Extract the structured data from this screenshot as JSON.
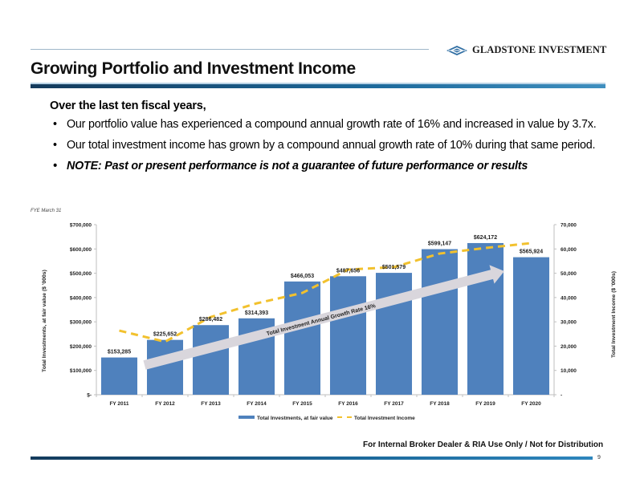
{
  "header": {
    "brand": "GLADSTONE INVESTMENT",
    "brand_icon": "diamond-logo-icon",
    "title": "Growing Portfolio and Investment Income"
  },
  "body": {
    "lead": "Over the last ten fiscal years,",
    "bullets": [
      "Our portfolio value has experienced a compound annual growth rate of 16% and increased in value by 3.7x.",
      "Our total investment income has grown by a compound annual growth rate of 10% during that same period.",
      "NOTE: Past or present performance is not a guarantee of future performance or results"
    ]
  },
  "chart_note": "FYE March 31",
  "chart_data": {
    "type": "bar",
    "title": "",
    "categories": [
      "FY 2011",
      "FY 2012",
      "FY 2013",
      "FY 2014",
      "FY 2015",
      "FY 2016",
      "FY 2017",
      "FY 2018",
      "FY 2019",
      "FY 2020"
    ],
    "series": [
      {
        "name": "Total Investments, at fair value",
        "type": "bar",
        "axis": "left",
        "color": "#4f81bd",
        "values": [
          153285,
          225652,
          286482,
          314393,
          466053,
          487656,
          501579,
          599147,
          624172,
          565924
        ],
        "labels": [
          "$153,285",
          "$225,652",
          "$286,482",
          "$314,393",
          "$466,053",
          "$487,656",
          "$501,579",
          "$599,147",
          "$624,172",
          "$565,924"
        ]
      },
      {
        "name": "Total Investment Income",
        "type": "line",
        "style": "dashed",
        "axis": "right",
        "color": "#f2c12e",
        "values": [
          26400,
          21800,
          32000,
          37600,
          41900,
          51500,
          52500,
          58100,
          60400,
          62400
        ]
      }
    ],
    "ylabel": "Total Investments, at fair value ($ '000s)",
    "ylabel_right": "Total Investment Income ($ '000s)",
    "ylim": [
      0,
      700000
    ],
    "ylim_right": [
      0,
      70000
    ],
    "yticks": [
      "$-",
      "$100,000",
      "$200,000",
      "$300,000",
      "$400,000",
      "$500,000",
      "$600,000",
      "$700,000"
    ],
    "yticks_right": [
      "-",
      "10,000",
      "20,000",
      "30,000",
      "40,000",
      "50,000",
      "60,000",
      "70,000"
    ],
    "annotation": "Total Investment Annual Growth Rate 16%",
    "legend_position": "bottom",
    "grid": false
  },
  "footer": {
    "disclaimer": "For Internal Broker Dealer & RIA Use Only / Not for Distribution",
    "page_number": "9"
  }
}
